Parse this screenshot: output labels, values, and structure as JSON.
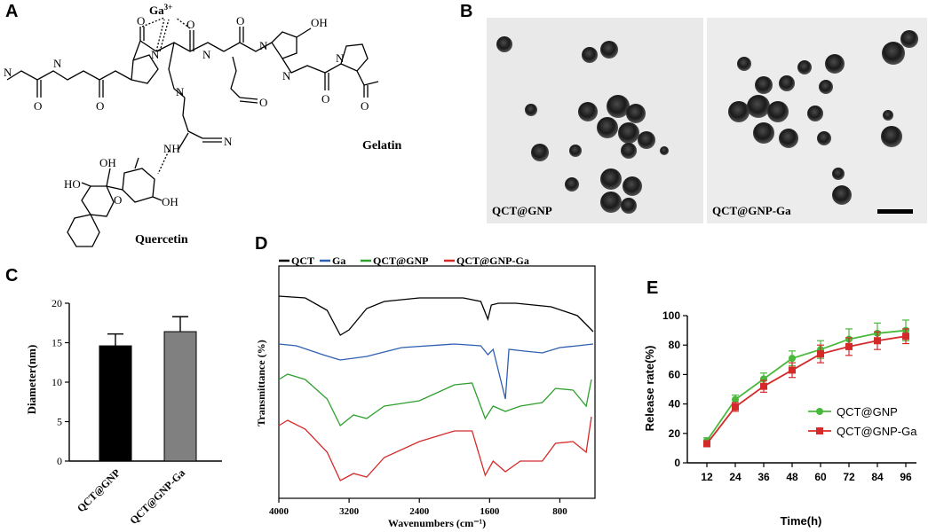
{
  "panels": {
    "a": "A",
    "b": "B",
    "c": "C",
    "d": "D",
    "e": "E"
  },
  "panel_a": {
    "ion": "Ga",
    "ion_charge": "3+",
    "atoms": {
      "O": "O",
      "N": "N",
      "H": "H",
      "NH": "NH",
      "OH": "OH",
      "HO": "HO"
    },
    "gelatin_label": "Gelatin",
    "quercetin_label": "Quercetin"
  },
  "panel_b": {
    "left_label": "QCT@GNP",
    "right_label": "QCT@GNP-Ga"
  },
  "chart_c": {
    "type": "bar",
    "categories": [
      "QCT@GNP",
      "QCT@GNP-Ga"
    ],
    "values": [
      14.6,
      16.4
    ],
    "errors": [
      1.5,
      1.9
    ],
    "ylabel": "Diameter(nm)",
    "ylim": [
      0,
      20
    ],
    "yticks": [
      0,
      5,
      10,
      15,
      20
    ],
    "colors": [
      "#000000",
      "#808080"
    ]
  },
  "chart_d": {
    "type": "line",
    "xlabel": "Wavenumbers (cm⁻¹)",
    "ylabel": "Transmittance (%)",
    "xlim": [
      4000,
      400
    ],
    "xticks": [
      4000,
      3200,
      2400,
      1600,
      800
    ],
    "legend": [
      {
        "name": "QCT",
        "color": "#000000"
      },
      {
        "name": "Ga",
        "color": "#2f5fb0"
      },
      {
        "name": "QCT@GNP",
        "color": "#2ea02e"
      },
      {
        "name": "QCT@GNP-Ga",
        "color": "#d42a2a"
      }
    ]
  },
  "chart_e": {
    "type": "line",
    "x": [
      12,
      24,
      36,
      48,
      60,
      72,
      84,
      96
    ],
    "xlabel": "Time(h)",
    "ylabel": "Release rate(%)",
    "ylim": [
      0,
      100
    ],
    "yticks": [
      0,
      20,
      40,
      60,
      80,
      100
    ],
    "series": [
      {
        "name": "QCT@GNP",
        "color": "#49b93c",
        "values": [
          15,
          43,
          57,
          71,
          77,
          84,
          88,
          90
        ],
        "errors": [
          2,
          3,
          4,
          5,
          6,
          7,
          7,
          7
        ]
      },
      {
        "name": "QCT@GNP-Ga",
        "color": "#d42a2a",
        "values": [
          13,
          38,
          52,
          63,
          74,
          79,
          83,
          86
        ],
        "errors": [
          2,
          3,
          4,
          5,
          6,
          6,
          6,
          5
        ]
      }
    ]
  }
}
